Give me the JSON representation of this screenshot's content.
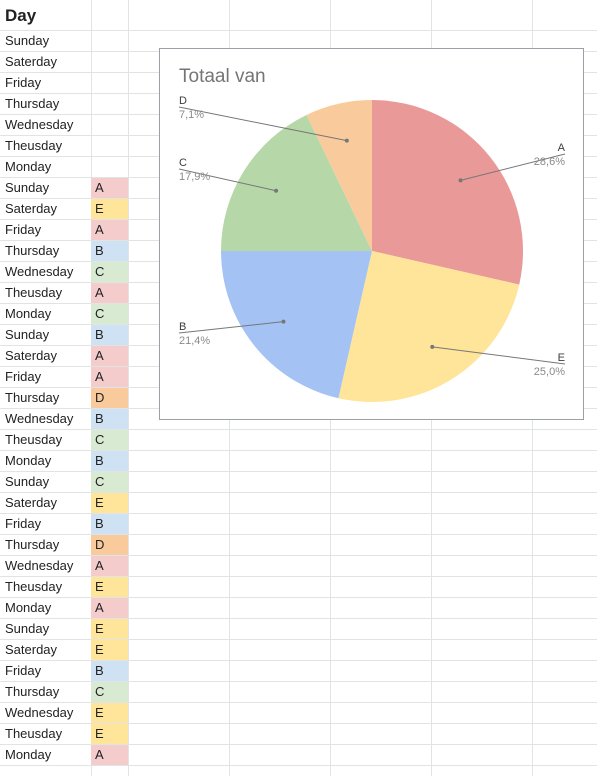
{
  "sheet": {
    "header": "Day",
    "rows": [
      {
        "day": "Sunday",
        "value": ""
      },
      {
        "day": "Saterday",
        "value": ""
      },
      {
        "day": "Friday",
        "value": ""
      },
      {
        "day": "Thursday",
        "value": ""
      },
      {
        "day": "Wednesday",
        "value": ""
      },
      {
        "day": "Theusday",
        "value": ""
      },
      {
        "day": "Monday",
        "value": ""
      },
      {
        "day": "Sunday",
        "value": "A"
      },
      {
        "day": "Saterday",
        "value": "E"
      },
      {
        "day": "Friday",
        "value": "A"
      },
      {
        "day": "Thursday",
        "value": "B"
      },
      {
        "day": "Wednesday",
        "value": "C"
      },
      {
        "day": "Theusday",
        "value": "A"
      },
      {
        "day": "Monday",
        "value": "C"
      },
      {
        "day": "Sunday",
        "value": "B"
      },
      {
        "day": "Saterday",
        "value": "A"
      },
      {
        "day": "Friday",
        "value": "A"
      },
      {
        "day": "Thursday",
        "value": "D"
      },
      {
        "day": "Wednesday",
        "value": "B"
      },
      {
        "day": "Theusday",
        "value": "C"
      },
      {
        "day": "Monday",
        "value": "B"
      },
      {
        "day": "Sunday",
        "value": "C"
      },
      {
        "day": "Saterday",
        "value": "E"
      },
      {
        "day": "Friday",
        "value": "B"
      },
      {
        "day": "Thursday",
        "value": "D"
      },
      {
        "day": "Wednesday",
        "value": "A"
      },
      {
        "day": "Theusday",
        "value": "E"
      },
      {
        "day": "Monday",
        "value": "A"
      },
      {
        "day": "Sunday",
        "value": "E"
      },
      {
        "day": "Saterday",
        "value": "E"
      },
      {
        "day": "Friday",
        "value": "B"
      },
      {
        "day": "Thursday",
        "value": "C"
      },
      {
        "day": "Wednesday",
        "value": "E"
      },
      {
        "day": "Theusday",
        "value": "E"
      },
      {
        "day": "Monday",
        "value": "A"
      }
    ],
    "value_colors": {
      "A": "#f4cccc",
      "B": "#cfe2f3",
      "C": "#d9ead3",
      "D": "#f9cb9c",
      "E": "#ffe599"
    }
  },
  "chart_data": {
    "type": "pie",
    "title": "Totaal van",
    "slices": [
      {
        "label": "A",
        "percent_label": "28,6%",
        "value": 8,
        "color": "#ea9999"
      },
      {
        "label": "E",
        "percent_label": "25,0%",
        "value": 7,
        "color": "#ffe599"
      },
      {
        "label": "B",
        "percent_label": "21,4%",
        "value": 6,
        "color": "#a4c2f4"
      },
      {
        "label": "C",
        "percent_label": "17,9%",
        "value": 5,
        "color": "#b6d7a8"
      },
      {
        "label": "D",
        "percent_label": "7,1%",
        "value": 2,
        "color": "#f9cb9c"
      }
    ]
  }
}
